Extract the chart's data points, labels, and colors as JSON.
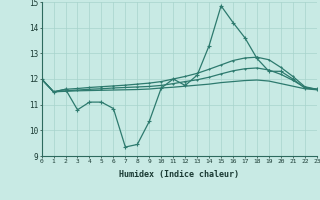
{
  "xlabel": "Humidex (Indice chaleur)",
  "xlim": [
    0,
    23
  ],
  "ylim": [
    9,
    15
  ],
  "yticks": [
    9,
    10,
    11,
    12,
    13,
    14,
    15
  ],
  "xticks": [
    0,
    1,
    2,
    3,
    4,
    5,
    6,
    7,
    8,
    9,
    10,
    11,
    12,
    13,
    14,
    15,
    16,
    17,
    18,
    19,
    20,
    21,
    22,
    23
  ],
  "bg_color": "#c8eae4",
  "line_color": "#2d7a6e",
  "grid_color": "#a8d4cc",
  "lines": [
    {
      "x": [
        0,
        1,
        2,
        3,
        4,
        5,
        6,
        7,
        8,
        9,
        10,
        11,
        12,
        13,
        14,
        15,
        16,
        17,
        18,
        19,
        20,
        21,
        22,
        23
      ],
      "y": [
        12.0,
        11.5,
        11.6,
        10.8,
        11.1,
        11.1,
        10.85,
        9.35,
        9.45,
        10.35,
        11.65,
        12.0,
        11.75,
        12.15,
        13.3,
        14.85,
        14.2,
        13.6,
        12.8,
        12.3,
        12.3,
        12.0,
        11.65,
        11.6
      ],
      "marker": "+",
      "marker_size": 3,
      "linewidth": 0.9
    },
    {
      "x": [
        0,
        1,
        2,
        3,
        4,
        5,
        6,
        7,
        8,
        9,
        10,
        11,
        12,
        13,
        14,
        15,
        16,
        17,
        18,
        19,
        20,
        21,
        22,
        23
      ],
      "y": [
        12.0,
        11.5,
        11.6,
        11.63,
        11.67,
        11.7,
        11.73,
        11.76,
        11.8,
        11.84,
        11.9,
        12.0,
        12.1,
        12.22,
        12.38,
        12.55,
        12.72,
        12.82,
        12.85,
        12.75,
        12.45,
        12.1,
        11.7,
        11.6
      ],
      "marker": "+",
      "marker_size": 2,
      "linewidth": 0.9
    },
    {
      "x": [
        0,
        1,
        2,
        3,
        4,
        5,
        6,
        7,
        8,
        9,
        10,
        11,
        12,
        13,
        14,
        15,
        16,
        17,
        18,
        19,
        20,
        21,
        22,
        23
      ],
      "y": [
        12.0,
        11.5,
        11.54,
        11.57,
        11.6,
        11.62,
        11.65,
        11.67,
        11.69,
        11.71,
        11.75,
        11.82,
        11.9,
        11.97,
        12.07,
        12.2,
        12.32,
        12.4,
        12.43,
        12.35,
        12.18,
        11.95,
        11.67,
        11.6
      ],
      "marker": "+",
      "marker_size": 2,
      "linewidth": 0.9
    },
    {
      "x": [
        0,
        1,
        2,
        3,
        4,
        5,
        6,
        7,
        8,
        9,
        10,
        11,
        12,
        13,
        14,
        15,
        16,
        17,
        18,
        19,
        20,
        21,
        22,
        23
      ],
      "y": [
        12.0,
        11.5,
        11.52,
        11.54,
        11.55,
        11.56,
        11.57,
        11.58,
        11.59,
        11.61,
        11.65,
        11.68,
        11.72,
        11.76,
        11.8,
        11.86,
        11.9,
        11.94,
        11.96,
        11.92,
        11.82,
        11.72,
        11.62,
        11.58
      ],
      "marker": null,
      "marker_size": 0,
      "linewidth": 0.9
    }
  ]
}
